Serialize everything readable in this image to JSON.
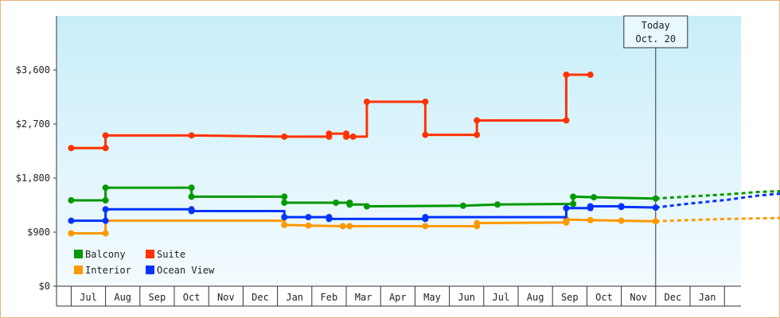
{
  "chart_data": {
    "type": "line",
    "title": "",
    "xlabel": "",
    "ylabel": "",
    "ylim": [
      0,
      4500
    ],
    "yticks": [
      {
        "value": 0,
        "label": "$0"
      },
      {
        "value": 900,
        "label": "$900"
      },
      {
        "value": 1800,
        "label": "$1,800"
      },
      {
        "value": 2700,
        "label": "$2,700"
      },
      {
        "value": 3600,
        "label": "$3,600"
      }
    ],
    "months": [
      "Jul",
      "Aug",
      "Sep",
      "Oct",
      "Nov",
      "Dec",
      "Jan",
      "Feb",
      "Mar",
      "Apr",
      "May",
      "Jun",
      "Jul",
      "Aug",
      "Sep",
      "Oct",
      "Nov",
      "Dec",
      "Jan"
    ],
    "today": {
      "label_line1": "Today",
      "label_line2": "Oct. 20",
      "x": 16.5
    },
    "legend_position": "bottom-left",
    "series": [
      {
        "name": "Balcony",
        "color": "#009900",
        "points": [
          [
            -0.5,
            1430
          ],
          [
            0.5,
            1430
          ],
          [
            0.5,
            1640
          ],
          [
            3.0,
            1640
          ],
          [
            3.0,
            1490
          ],
          [
            5.7,
            1490
          ],
          [
            5.7,
            1390
          ],
          [
            7.2,
            1390
          ],
          [
            7.6,
            1390
          ],
          [
            7.6,
            1360
          ],
          [
            8.1,
            1360
          ],
          [
            8.1,
            1330
          ],
          [
            10.9,
            1340
          ],
          [
            11.9,
            1360
          ],
          [
            14.1,
            1370
          ],
          [
            14.1,
            1490
          ],
          [
            14.7,
            1480
          ],
          [
            16.5,
            1460
          ]
        ],
        "markers": [
          [
            -0.5,
            1430
          ],
          [
            0.5,
            1430
          ],
          [
            0.5,
            1640
          ],
          [
            3.0,
            1640
          ],
          [
            3.0,
            1490
          ],
          [
            5.7,
            1490
          ],
          [
            5.7,
            1390
          ],
          [
            7.2,
            1390
          ],
          [
            7.6,
            1390
          ],
          [
            7.6,
            1360
          ],
          [
            8.1,
            1330
          ],
          [
            10.9,
            1340
          ],
          [
            11.9,
            1360
          ],
          [
            14.1,
            1370
          ],
          [
            14.1,
            1490
          ],
          [
            14.7,
            1480
          ],
          [
            16.5,
            1460
          ]
        ],
        "forecast": [
          [
            16.5,
            1460
          ],
          [
            17.4,
            1490
          ],
          [
            18.6,
            1530
          ],
          [
            19.5,
            1570
          ],
          [
            20.5,
            1590
          ]
        ]
      },
      {
        "name": "Suite",
        "color": "#ff3300",
        "points": [
          [
            -0.5,
            2300
          ],
          [
            0.5,
            2300
          ],
          [
            0.5,
            2510
          ],
          [
            3.0,
            2510
          ],
          [
            5.7,
            2490
          ],
          [
            7.0,
            2490
          ],
          [
            7.0,
            2540
          ],
          [
            7.5,
            2540
          ],
          [
            7.5,
            2490
          ],
          [
            8.1,
            2490
          ],
          [
            8.1,
            3070
          ],
          [
            9.8,
            3070
          ],
          [
            9.8,
            2520
          ],
          [
            11.3,
            2520
          ],
          [
            11.3,
            2760
          ],
          [
            13.9,
            2760
          ],
          [
            13.9,
            3520
          ],
          [
            14.6,
            3520
          ]
        ],
        "markers": [
          [
            -0.5,
            2300
          ],
          [
            0.5,
            2300
          ],
          [
            0.5,
            2510
          ],
          [
            3.0,
            2510
          ],
          [
            5.7,
            2490
          ],
          [
            7.0,
            2490
          ],
          [
            7.0,
            2540
          ],
          [
            7.5,
            2540
          ],
          [
            7.5,
            2490
          ],
          [
            7.7,
            2490
          ],
          [
            8.1,
            3070
          ],
          [
            9.8,
            3070
          ],
          [
            9.8,
            2520
          ],
          [
            11.3,
            2520
          ],
          [
            11.3,
            2760
          ],
          [
            13.9,
            2760
          ],
          [
            13.9,
            3520
          ],
          [
            14.6,
            3520
          ]
        ],
        "forecast": []
      },
      {
        "name": "Interior",
        "color": "#ff9900",
        "points": [
          [
            -0.5,
            880
          ],
          [
            0.5,
            880
          ],
          [
            0.5,
            1090
          ],
          [
            5.7,
            1090
          ],
          [
            5.7,
            1020
          ],
          [
            6.4,
            1010
          ],
          [
            7.4,
            1000
          ],
          [
            7.6,
            1000
          ],
          [
            9.8,
            1000
          ],
          [
            11.3,
            1000
          ],
          [
            11.3,
            1050
          ],
          [
            13.9,
            1060
          ],
          [
            13.9,
            1110
          ],
          [
            14.6,
            1100
          ],
          [
            15.5,
            1090
          ],
          [
            16.5,
            1080
          ]
        ],
        "markers": [
          [
            -0.5,
            880
          ],
          [
            0.5,
            880
          ],
          [
            5.7,
            1020
          ],
          [
            6.4,
            1010
          ],
          [
            7.4,
            1000
          ],
          [
            7.6,
            1000
          ],
          [
            9.8,
            1000
          ],
          [
            11.3,
            1000
          ],
          [
            11.3,
            1050
          ],
          [
            13.9,
            1060
          ],
          [
            13.9,
            1110
          ],
          [
            14.6,
            1100
          ],
          [
            15.5,
            1090
          ],
          [
            16.5,
            1080
          ]
        ],
        "forecast": [
          [
            16.5,
            1080
          ],
          [
            17.4,
            1100
          ],
          [
            18.6,
            1120
          ],
          [
            19.5,
            1130
          ],
          [
            20.5,
            1140
          ]
        ]
      },
      {
        "name": "Ocean View",
        "color": "#0033ff",
        "points": [
          [
            -0.5,
            1090
          ],
          [
            0.5,
            1090
          ],
          [
            0.5,
            1280
          ],
          [
            3.0,
            1280
          ],
          [
            3.0,
            1250
          ],
          [
            5.7,
            1250
          ],
          [
            5.7,
            1150
          ],
          [
            6.4,
            1150
          ],
          [
            7.0,
            1150
          ],
          [
            7.0,
            1120
          ],
          [
            9.8,
            1120
          ],
          [
            9.8,
            1150
          ],
          [
            13.9,
            1150
          ],
          [
            13.9,
            1300
          ],
          [
            14.6,
            1300
          ],
          [
            14.6,
            1330
          ],
          [
            15.5,
            1330
          ],
          [
            15.5,
            1320
          ],
          [
            16.5,
            1310
          ]
        ],
        "markers": [
          [
            -0.5,
            1090
          ],
          [
            0.5,
            1090
          ],
          [
            0.5,
            1280
          ],
          [
            3.0,
            1280
          ],
          [
            3.0,
            1250
          ],
          [
            5.7,
            1150
          ],
          [
            6.4,
            1150
          ],
          [
            7.0,
            1150
          ],
          [
            7.0,
            1120
          ],
          [
            9.8,
            1120
          ],
          [
            9.8,
            1150
          ],
          [
            13.9,
            1300
          ],
          [
            14.6,
            1300
          ],
          [
            14.6,
            1330
          ],
          [
            15.5,
            1330
          ],
          [
            15.5,
            1320
          ],
          [
            16.5,
            1310
          ]
        ],
        "forecast": [
          [
            16.5,
            1310
          ],
          [
            17.4,
            1370
          ],
          [
            18.6,
            1440
          ],
          [
            19.5,
            1510
          ],
          [
            20.5,
            1560
          ]
        ]
      }
    ],
    "legend": [
      {
        "name": "Balcony",
        "color": "#009900"
      },
      {
        "name": "Suite",
        "color": "#ff3300"
      },
      {
        "name": "Interior",
        "color": "#ff9900"
      },
      {
        "name": "Ocean View",
        "color": "#0033ff"
      }
    ]
  }
}
